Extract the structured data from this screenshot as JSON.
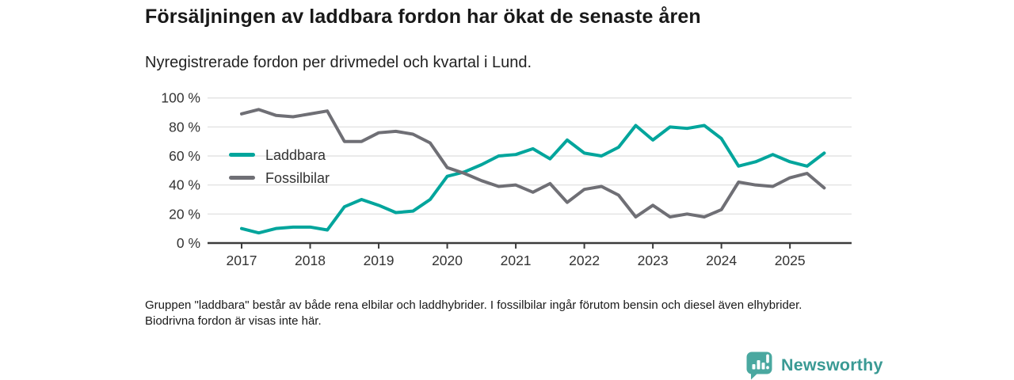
{
  "header": {
    "title": "Försäljningen av laddbara fordon har ökat de senaste åren",
    "subtitle": "Nyregistrerade fordon per drivmedel och kvartal i Lund."
  },
  "chart_data": {
    "type": "line",
    "x_quarters": [
      "2017 Q1",
      "2017 Q2",
      "2017 Q3",
      "2017 Q4",
      "2018 Q1",
      "2018 Q2",
      "2018 Q3",
      "2018 Q4",
      "2019 Q1",
      "2019 Q2",
      "2019 Q3",
      "2019 Q4",
      "2020 Q1",
      "2020 Q2",
      "2020 Q3",
      "2020 Q4",
      "2021 Q1",
      "2021 Q2",
      "2021 Q3",
      "2021 Q4",
      "2022 Q1",
      "2022 Q2",
      "2022 Q3",
      "2022 Q4",
      "2023 Q1",
      "2023 Q2",
      "2023 Q3",
      "2023 Q4",
      "2024 Q1",
      "2024 Q2",
      "2024 Q3",
      "2024 Q4",
      "2025 Q1",
      "2025 Q2",
      "2025 Q3"
    ],
    "series": [
      {
        "name": "Laddbara",
        "color": "#00a59c",
        "values": [
          10,
          7,
          10,
          11,
          11,
          9,
          25,
          30,
          26,
          21,
          22,
          30,
          46,
          49,
          54,
          60,
          61,
          65,
          58,
          71,
          62,
          60,
          66,
          81,
          71,
          80,
          79,
          81,
          72,
          53,
          56,
          61,
          56,
          53,
          62
        ]
      },
      {
        "name": "Fossilbilar",
        "color": "#6f6f75",
        "values": [
          89,
          92,
          88,
          87,
          89,
          91,
          70,
          70,
          76,
          77,
          75,
          69,
          52,
          48,
          43,
          39,
          40,
          35,
          41,
          28,
          37,
          39,
          33,
          18,
          26,
          18,
          20,
          18,
          23,
          42,
          40,
          39,
          45,
          48,
          38
        ]
      }
    ],
    "ylim": [
      0,
      100
    ],
    "y_ticks": [
      0,
      20,
      40,
      60,
      80,
      100
    ],
    "y_tick_suffix": " %",
    "x_tick_labels": [
      "2017",
      "2018",
      "2019",
      "2020",
      "2021",
      "2022",
      "2023",
      "2024",
      "2025"
    ],
    "grid": "horizontal",
    "legend_position": "inside-upper-left",
    "axis_color": "#3c3c3c",
    "grid_color": "#e4e4e4",
    "tick_label_color": "#333333"
  },
  "footer": {
    "note": "Gruppen \"laddbara\" består av både rena elbilar och laddhybrider. I fossilbilar ingår förutom bensin och diesel även elhybrider. Biodrivna fordon är visas inte här."
  },
  "branding": {
    "logo_text": "Newsworthy",
    "icon": "newsworthy-bar-chart-bubble-icon",
    "icon_color": "#4aa8a0",
    "text_color": "#3a9a94"
  }
}
